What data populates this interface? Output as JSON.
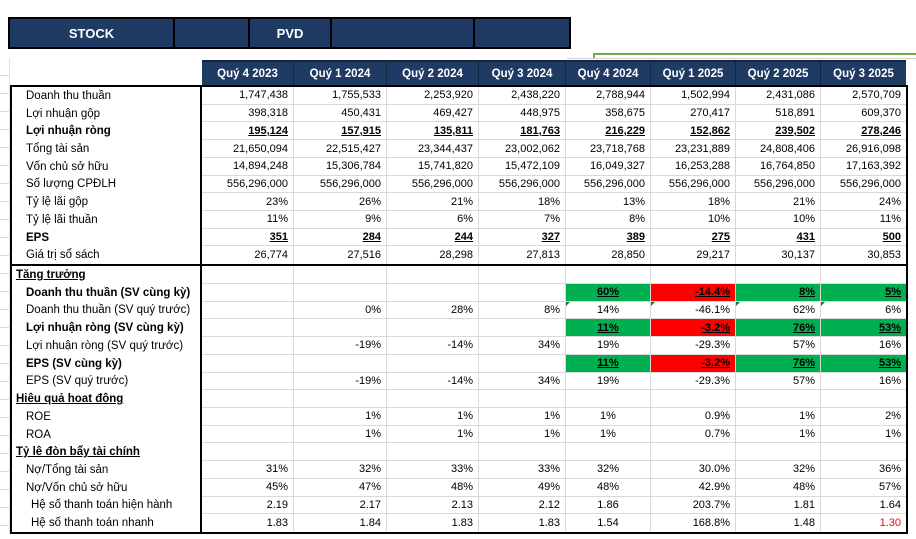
{
  "band": {
    "cells": [
      {
        "label": "STOCK"
      },
      {
        "label": ""
      },
      {
        "label": "PVD"
      },
      {
        "label": ""
      },
      {
        "label": ""
      }
    ]
  },
  "colors": {
    "header_navy": "#1f3a63",
    "positive_green": "#00b050",
    "negative_red": "#ff0000",
    "range_border_green": "#70ad47",
    "gridline_gray": "#d9d9d9"
  },
  "table": {
    "columns": [
      "Quý 4 2023",
      "Quý 1 2024",
      "Quý 2 2024",
      "Quý 3 2024",
      "Quý 4 2024",
      "Quý 1 2025",
      "Quý 2 2025",
      "Quý 3 2025"
    ],
    "rows": [
      {
        "label": "Doanh thu thuần",
        "values": [
          "1,747,438",
          "1,755,533",
          "2,253,920",
          "2,438,220",
          "2,788,944",
          "1,502,994",
          "2,431,086",
          "2,570,709"
        ]
      },
      {
        "label": "Lợi nhuận gộp",
        "values": [
          "398,318",
          "450,431",
          "469,427",
          "448,975",
          "358,675",
          "270,417",
          "518,891",
          "609,370"
        ]
      },
      {
        "label": "Lợi nhuận ròng",
        "bold": true,
        "ul": true,
        "values": [
          "195,124",
          "157,915",
          "135,811",
          "181,763",
          "216,229",
          "152,862",
          "239,502",
          "278,246"
        ]
      },
      {
        "label": "Tổng tài sản",
        "values": [
          "21,650,094",
          "22,515,427",
          "23,344,437",
          "23,002,062",
          "23,718,768",
          "23,231,889",
          "24,808,406",
          "26,916,098"
        ]
      },
      {
        "label": "Vốn chủ sở hữu",
        "values": [
          "14,894,248",
          "15,306,784",
          "15,741,820",
          "15,472,109",
          "16,049,327",
          "16,253,288",
          "16,764,850",
          "17,163,392"
        ]
      },
      {
        "label": "Số lượng CPĐLH",
        "values": [
          "556,296,000",
          "556,296,000",
          "556,296,000",
          "556,296,000",
          "556,296,000",
          "556,296,000",
          "556,296,000",
          "556,296,000"
        ]
      },
      {
        "label": "Tỷ lệ lãi gộp",
        "values": [
          "23%",
          "26%",
          "21%",
          "18%",
          "13%",
          "18%",
          "21%",
          "24%"
        ]
      },
      {
        "label": "Tỷ lệ lãi thuần",
        "values": [
          "11%",
          "9%",
          "6%",
          "7%",
          "8%",
          "10%",
          "10%",
          "11%"
        ]
      },
      {
        "label": "EPS",
        "bold": true,
        "ul": true,
        "values": [
          "351",
          "284",
          "244",
          "327",
          "389",
          "275",
          "431",
          "500"
        ]
      },
      {
        "label": "Giá trị sổ sách",
        "divider": true,
        "values": [
          "26,774",
          "27,516",
          "28,298",
          "27,813",
          "28,850",
          "29,217",
          "30,137",
          "30,853"
        ]
      },
      {
        "label": "Tăng trưởng",
        "section": true,
        "values": [
          "",
          "",
          "",
          "",
          "",
          "",
          "",
          ""
        ]
      },
      {
        "label": "Doanh thu thuần (SV cùng kỳ)",
        "bold": true,
        "ul": true,
        "center4": true,
        "values": [
          "",
          "",
          "",
          "",
          "60%",
          "-14.4%",
          "8%",
          "5%"
        ],
        "fills": {
          "4": "green",
          "5": "red",
          "6": "green",
          "7": "green"
        }
      },
      {
        "label": "Doanh thu thuần (SV quý trước)",
        "center4": true,
        "tri": [
          4,
          5,
          6,
          7
        ],
        "values": [
          "",
          "0%",
          "28%",
          "8%",
          "14%",
          "-46.1%",
          "62%",
          "6%"
        ]
      },
      {
        "label": "Lợi nhuận ròng (SV cùng kỳ)",
        "bold": true,
        "ul": true,
        "center4": true,
        "values": [
          "",
          "",
          "",
          "",
          "11%",
          "-3.2%",
          "76%",
          "53%"
        ],
        "fills": {
          "4": "green",
          "5": "red",
          "6": "green",
          "7": "green"
        }
      },
      {
        "label": "Lợi nhuận ròng (SV quý trước)",
        "center4": true,
        "values": [
          "",
          "-19%",
          "-14%",
          "34%",
          "19%",
          "-29.3%",
          "57%",
          "16%"
        ]
      },
      {
        "label": "EPS (SV cùng kỳ)",
        "bold": true,
        "ul": true,
        "center4": true,
        "values": [
          "",
          "",
          "",
          "",
          "11%",
          "-3.2%",
          "76%",
          "53%"
        ],
        "fills": {
          "4": "green",
          "5": "red",
          "6": "green",
          "7": "green"
        }
      },
      {
        "label": "EPS (SV quý trước)",
        "center4": true,
        "values": [
          "",
          "-19%",
          "-14%",
          "34%",
          "19%",
          "-29.3%",
          "57%",
          "16%"
        ]
      },
      {
        "label": "Hiêu quả hoat đông",
        "section": true,
        "values": [
          "",
          "",
          "",
          "",
          "",
          "",
          "",
          ""
        ]
      },
      {
        "label": "ROE",
        "center4": true,
        "values": [
          "",
          "1%",
          "1%",
          "1%",
          "1%",
          "0.9%",
          "1%",
          "2%"
        ]
      },
      {
        "label": "ROA",
        "center4": true,
        "values": [
          "",
          "1%",
          "1%",
          "1%",
          "1%",
          "0.7%",
          "1%",
          "1%"
        ]
      },
      {
        "label": "Tỷ lê đòn bẩy tài chính",
        "section": true,
        "values": [
          "",
          "",
          "",
          "",
          "",
          "",
          "",
          ""
        ]
      },
      {
        "label": "Nợ/Tổng tài sản",
        "center4": true,
        "values": [
          "31%",
          "32%",
          "33%",
          "33%",
          "32%",
          "30.0%",
          "32%",
          "36%"
        ]
      },
      {
        "label": "Nợ/Vốn chủ sở hữu",
        "center4": true,
        "values": [
          "45%",
          "47%",
          "48%",
          "49%",
          "48%",
          "42.9%",
          "48%",
          "57%"
        ]
      },
      {
        "label": "Hệ số thanh toán hiện hành",
        "indent": 2,
        "center4": true,
        "values": [
          "2.19",
          "2.17",
          "2.13",
          "2.12",
          "1.86",
          "203.7%",
          "1.81",
          "1.64"
        ]
      },
      {
        "label": "Hệ số thanh toán nhanh",
        "indent": 2,
        "center4": true,
        "textRed": [
          7
        ],
        "values": [
          "1.83",
          "1.84",
          "1.83",
          "1.83",
          "1.54",
          "168.8%",
          "1.48",
          "1.30"
        ]
      }
    ]
  }
}
